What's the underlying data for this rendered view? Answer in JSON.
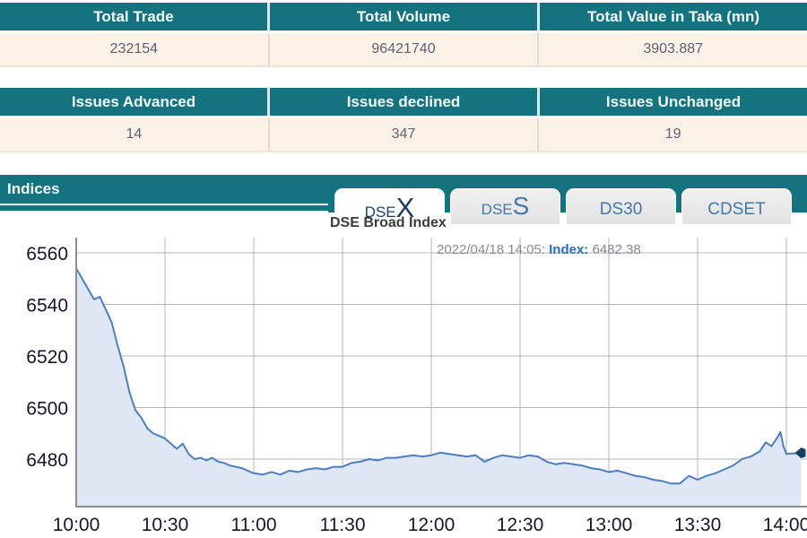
{
  "summary_table": {
    "headers": [
      "Total Trade",
      "Total Volume",
      "Total Value in Taka (mn)"
    ],
    "values": [
      "232154",
      "96421740",
      "3903.887"
    ]
  },
  "issues_table": {
    "headers": [
      "Issues Advanced",
      "Issues declined",
      "Issues Unchanged"
    ],
    "values": [
      "14",
      "347",
      "19"
    ]
  },
  "indices": {
    "title": "Indices",
    "tabs": [
      {
        "prefix": "DSE",
        "suffix": "X",
        "active": true
      },
      {
        "prefix": "DSE",
        "suffix": "S",
        "active": false
      },
      {
        "prefix": "DS30",
        "suffix": "",
        "active": false
      },
      {
        "prefix": "CDSET",
        "suffix": "",
        "active": false
      }
    ],
    "chart_title": "DSE Broad Index",
    "tooltip": {
      "datetime": "2022/04/18 14:05: ",
      "label": "Index:",
      "value": " 6482.38"
    }
  },
  "colors": {
    "teal": "#157380",
    "cream": "#fcf1e6",
    "line": "#4d7ebf",
    "fill": "#dfe7f4",
    "grid": "#b5b5b5",
    "axis": "#8f8f8f",
    "tick_text": "#16162c",
    "marker": "#173d66"
  },
  "chart_data": {
    "type": "area",
    "title": "DSE Broad Index",
    "xlabel": "",
    "ylabel": "",
    "x_ticks": [
      "10:00",
      "10:30",
      "11:00",
      "11:30",
      "12:00",
      "12:30",
      "13:00",
      "13:30",
      "14:00"
    ],
    "y_ticks": [
      6560,
      6540,
      6520,
      6500,
      6480
    ],
    "ylim": [
      6462,
      6566
    ],
    "x_range_time": [
      "10:00",
      "14:05"
    ],
    "grid": true,
    "legend": false,
    "annotation": "2022/04/18 14:05: Index: 6482.38",
    "last_value": 6482.38,
    "series": [
      {
        "name": "DSE Broad Index",
        "points": [
          [
            "10:00",
            6554
          ],
          [
            "10:02",
            6550
          ],
          [
            "10:04",
            6546
          ],
          [
            "10:06",
            6542
          ],
          [
            "10:08",
            6543
          ],
          [
            "10:10",
            6538
          ],
          [
            "10:12",
            6533
          ],
          [
            "10:14",
            6524
          ],
          [
            "10:16",
            6516
          ],
          [
            "10:18",
            6506
          ],
          [
            "10:20",
            6499
          ],
          [
            "10:22",
            6496
          ],
          [
            "10:24",
            6492
          ],
          [
            "10:26",
            6490
          ],
          [
            "10:28",
            6489
          ],
          [
            "10:30",
            6488
          ],
          [
            "10:32",
            6486
          ],
          [
            "10:34",
            6484
          ],
          [
            "10:36",
            6486
          ],
          [
            "10:38",
            6482
          ],
          [
            "10:40",
            6480
          ],
          [
            "10:42",
            6480.5
          ],
          [
            "10:44",
            6479.5
          ],
          [
            "10:46",
            6480.5
          ],
          [
            "10:48",
            6479
          ],
          [
            "10:50",
            6478.5
          ],
          [
            "10:52",
            6477.5
          ],
          [
            "10:54",
            6477
          ],
          [
            "10:56",
            6476.5
          ],
          [
            "10:58",
            6475.5
          ],
          [
            "11:00",
            6474.5
          ],
          [
            "11:03",
            6474
          ],
          [
            "11:06",
            6475
          ],
          [
            "11:09",
            6474
          ],
          [
            "11:12",
            6475.5
          ],
          [
            "11:15",
            6475
          ],
          [
            "11:18",
            6476
          ],
          [
            "11:21",
            6476.5
          ],
          [
            "11:24",
            6476
          ],
          [
            "11:27",
            6477
          ],
          [
            "11:30",
            6477
          ],
          [
            "11:33",
            6478.5
          ],
          [
            "11:36",
            6479
          ],
          [
            "11:39",
            6480
          ],
          [
            "11:42",
            6479.5
          ],
          [
            "11:45",
            6480.5
          ],
          [
            "11:48",
            6480.5
          ],
          [
            "11:51",
            6481
          ],
          [
            "11:54",
            6481.5
          ],
          [
            "11:57",
            6481
          ],
          [
            "12:00",
            6481.5
          ],
          [
            "12:03",
            6482.5
          ],
          [
            "12:06",
            6482
          ],
          [
            "12:09",
            6481.5
          ],
          [
            "12:12",
            6481
          ],
          [
            "12:15",
            6481.5
          ],
          [
            "12:18",
            6479
          ],
          [
            "12:21",
            6480.5
          ],
          [
            "12:24",
            6481.5
          ],
          [
            "12:27",
            6481
          ],
          [
            "12:30",
            6480.5
          ],
          [
            "12:33",
            6481.5
          ],
          [
            "12:36",
            6481
          ],
          [
            "12:39",
            6479
          ],
          [
            "12:42",
            6478
          ],
          [
            "12:45",
            6478.5
          ],
          [
            "12:48",
            6478
          ],
          [
            "12:51",
            6477.5
          ],
          [
            "12:54",
            6476.5
          ],
          [
            "12:57",
            6476
          ],
          [
            "13:00",
            6475
          ],
          [
            "13:03",
            6475.5
          ],
          [
            "13:06",
            6474.5
          ],
          [
            "13:09",
            6473.5
          ],
          [
            "13:12",
            6473
          ],
          [
            "13:15",
            6472
          ],
          [
            "13:18",
            6471.5
          ],
          [
            "13:21",
            6470.5
          ],
          [
            "13:24",
            6470.5
          ],
          [
            "13:27",
            6473.5
          ],
          [
            "13:30",
            6472
          ],
          [
            "13:33",
            6473.5
          ],
          [
            "13:36",
            6474.5
          ],
          [
            "13:39",
            6476
          ],
          [
            "13:42",
            6477.5
          ],
          [
            "13:45",
            6480
          ],
          [
            "13:48",
            6481
          ],
          [
            "13:51",
            6483
          ],
          [
            "13:53",
            6486.5
          ],
          [
            "13:55",
            6485
          ],
          [
            "13:57",
            6488.5
          ],
          [
            "13:58",
            6490.5
          ],
          [
            "13:59",
            6485
          ],
          [
            "14:00",
            6482
          ],
          [
            "14:02",
            6482.2
          ],
          [
            "14:05",
            6482.38
          ]
        ]
      }
    ]
  }
}
